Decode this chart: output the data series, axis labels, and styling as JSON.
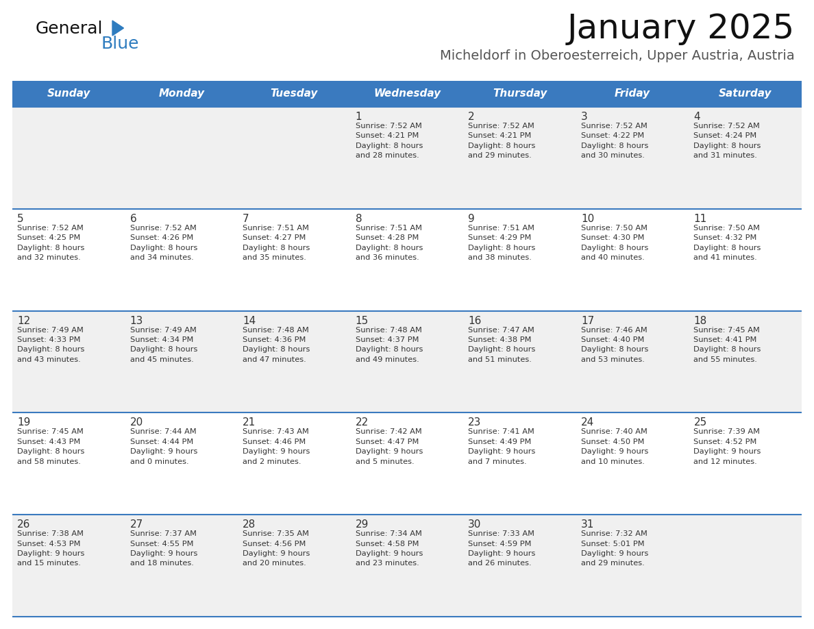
{
  "title": "January 2025",
  "subtitle": "Micheldorf in Oberoesterreich, Upper Austria, Austria",
  "header_bg_color": "#3a7abf",
  "header_text_color": "#ffffff",
  "cell_bg_even": "#f0f0f0",
  "cell_bg_odd": "#ffffff",
  "divider_color": "#3a7abf",
  "text_color": "#333333",
  "day_headers": [
    "Sunday",
    "Monday",
    "Tuesday",
    "Wednesday",
    "Thursday",
    "Friday",
    "Saturday"
  ],
  "calendar_data": [
    [
      {
        "day": "",
        "info": ""
      },
      {
        "day": "",
        "info": ""
      },
      {
        "day": "",
        "info": ""
      },
      {
        "day": "1",
        "info": "Sunrise: 7:52 AM\nSunset: 4:21 PM\nDaylight: 8 hours\nand 28 minutes."
      },
      {
        "day": "2",
        "info": "Sunrise: 7:52 AM\nSunset: 4:21 PM\nDaylight: 8 hours\nand 29 minutes."
      },
      {
        "day": "3",
        "info": "Sunrise: 7:52 AM\nSunset: 4:22 PM\nDaylight: 8 hours\nand 30 minutes."
      },
      {
        "day": "4",
        "info": "Sunrise: 7:52 AM\nSunset: 4:24 PM\nDaylight: 8 hours\nand 31 minutes."
      }
    ],
    [
      {
        "day": "5",
        "info": "Sunrise: 7:52 AM\nSunset: 4:25 PM\nDaylight: 8 hours\nand 32 minutes."
      },
      {
        "day": "6",
        "info": "Sunrise: 7:52 AM\nSunset: 4:26 PM\nDaylight: 8 hours\nand 34 minutes."
      },
      {
        "day": "7",
        "info": "Sunrise: 7:51 AM\nSunset: 4:27 PM\nDaylight: 8 hours\nand 35 minutes."
      },
      {
        "day": "8",
        "info": "Sunrise: 7:51 AM\nSunset: 4:28 PM\nDaylight: 8 hours\nand 36 minutes."
      },
      {
        "day": "9",
        "info": "Sunrise: 7:51 AM\nSunset: 4:29 PM\nDaylight: 8 hours\nand 38 minutes."
      },
      {
        "day": "10",
        "info": "Sunrise: 7:50 AM\nSunset: 4:30 PM\nDaylight: 8 hours\nand 40 minutes."
      },
      {
        "day": "11",
        "info": "Sunrise: 7:50 AM\nSunset: 4:32 PM\nDaylight: 8 hours\nand 41 minutes."
      }
    ],
    [
      {
        "day": "12",
        "info": "Sunrise: 7:49 AM\nSunset: 4:33 PM\nDaylight: 8 hours\nand 43 minutes."
      },
      {
        "day": "13",
        "info": "Sunrise: 7:49 AM\nSunset: 4:34 PM\nDaylight: 8 hours\nand 45 minutes."
      },
      {
        "day": "14",
        "info": "Sunrise: 7:48 AM\nSunset: 4:36 PM\nDaylight: 8 hours\nand 47 minutes."
      },
      {
        "day": "15",
        "info": "Sunrise: 7:48 AM\nSunset: 4:37 PM\nDaylight: 8 hours\nand 49 minutes."
      },
      {
        "day": "16",
        "info": "Sunrise: 7:47 AM\nSunset: 4:38 PM\nDaylight: 8 hours\nand 51 minutes."
      },
      {
        "day": "17",
        "info": "Sunrise: 7:46 AM\nSunset: 4:40 PM\nDaylight: 8 hours\nand 53 minutes."
      },
      {
        "day": "18",
        "info": "Sunrise: 7:45 AM\nSunset: 4:41 PM\nDaylight: 8 hours\nand 55 minutes."
      }
    ],
    [
      {
        "day": "19",
        "info": "Sunrise: 7:45 AM\nSunset: 4:43 PM\nDaylight: 8 hours\nand 58 minutes."
      },
      {
        "day": "20",
        "info": "Sunrise: 7:44 AM\nSunset: 4:44 PM\nDaylight: 9 hours\nand 0 minutes."
      },
      {
        "day": "21",
        "info": "Sunrise: 7:43 AM\nSunset: 4:46 PM\nDaylight: 9 hours\nand 2 minutes."
      },
      {
        "day": "22",
        "info": "Sunrise: 7:42 AM\nSunset: 4:47 PM\nDaylight: 9 hours\nand 5 minutes."
      },
      {
        "day": "23",
        "info": "Sunrise: 7:41 AM\nSunset: 4:49 PM\nDaylight: 9 hours\nand 7 minutes."
      },
      {
        "day": "24",
        "info": "Sunrise: 7:40 AM\nSunset: 4:50 PM\nDaylight: 9 hours\nand 10 minutes."
      },
      {
        "day": "25",
        "info": "Sunrise: 7:39 AM\nSunset: 4:52 PM\nDaylight: 9 hours\nand 12 minutes."
      }
    ],
    [
      {
        "day": "26",
        "info": "Sunrise: 7:38 AM\nSunset: 4:53 PM\nDaylight: 9 hours\nand 15 minutes."
      },
      {
        "day": "27",
        "info": "Sunrise: 7:37 AM\nSunset: 4:55 PM\nDaylight: 9 hours\nand 18 minutes."
      },
      {
        "day": "28",
        "info": "Sunrise: 7:35 AM\nSunset: 4:56 PM\nDaylight: 9 hours\nand 20 minutes."
      },
      {
        "day": "29",
        "info": "Sunrise: 7:34 AM\nSunset: 4:58 PM\nDaylight: 9 hours\nand 23 minutes."
      },
      {
        "day": "30",
        "info": "Sunrise: 7:33 AM\nSunset: 4:59 PM\nDaylight: 9 hours\nand 26 minutes."
      },
      {
        "day": "31",
        "info": "Sunrise: 7:32 AM\nSunset: 5:01 PM\nDaylight: 9 hours\nand 29 minutes."
      },
      {
        "day": "",
        "info": ""
      }
    ]
  ],
  "fig_width": 11.88,
  "fig_height": 9.18,
  "dpi": 100
}
